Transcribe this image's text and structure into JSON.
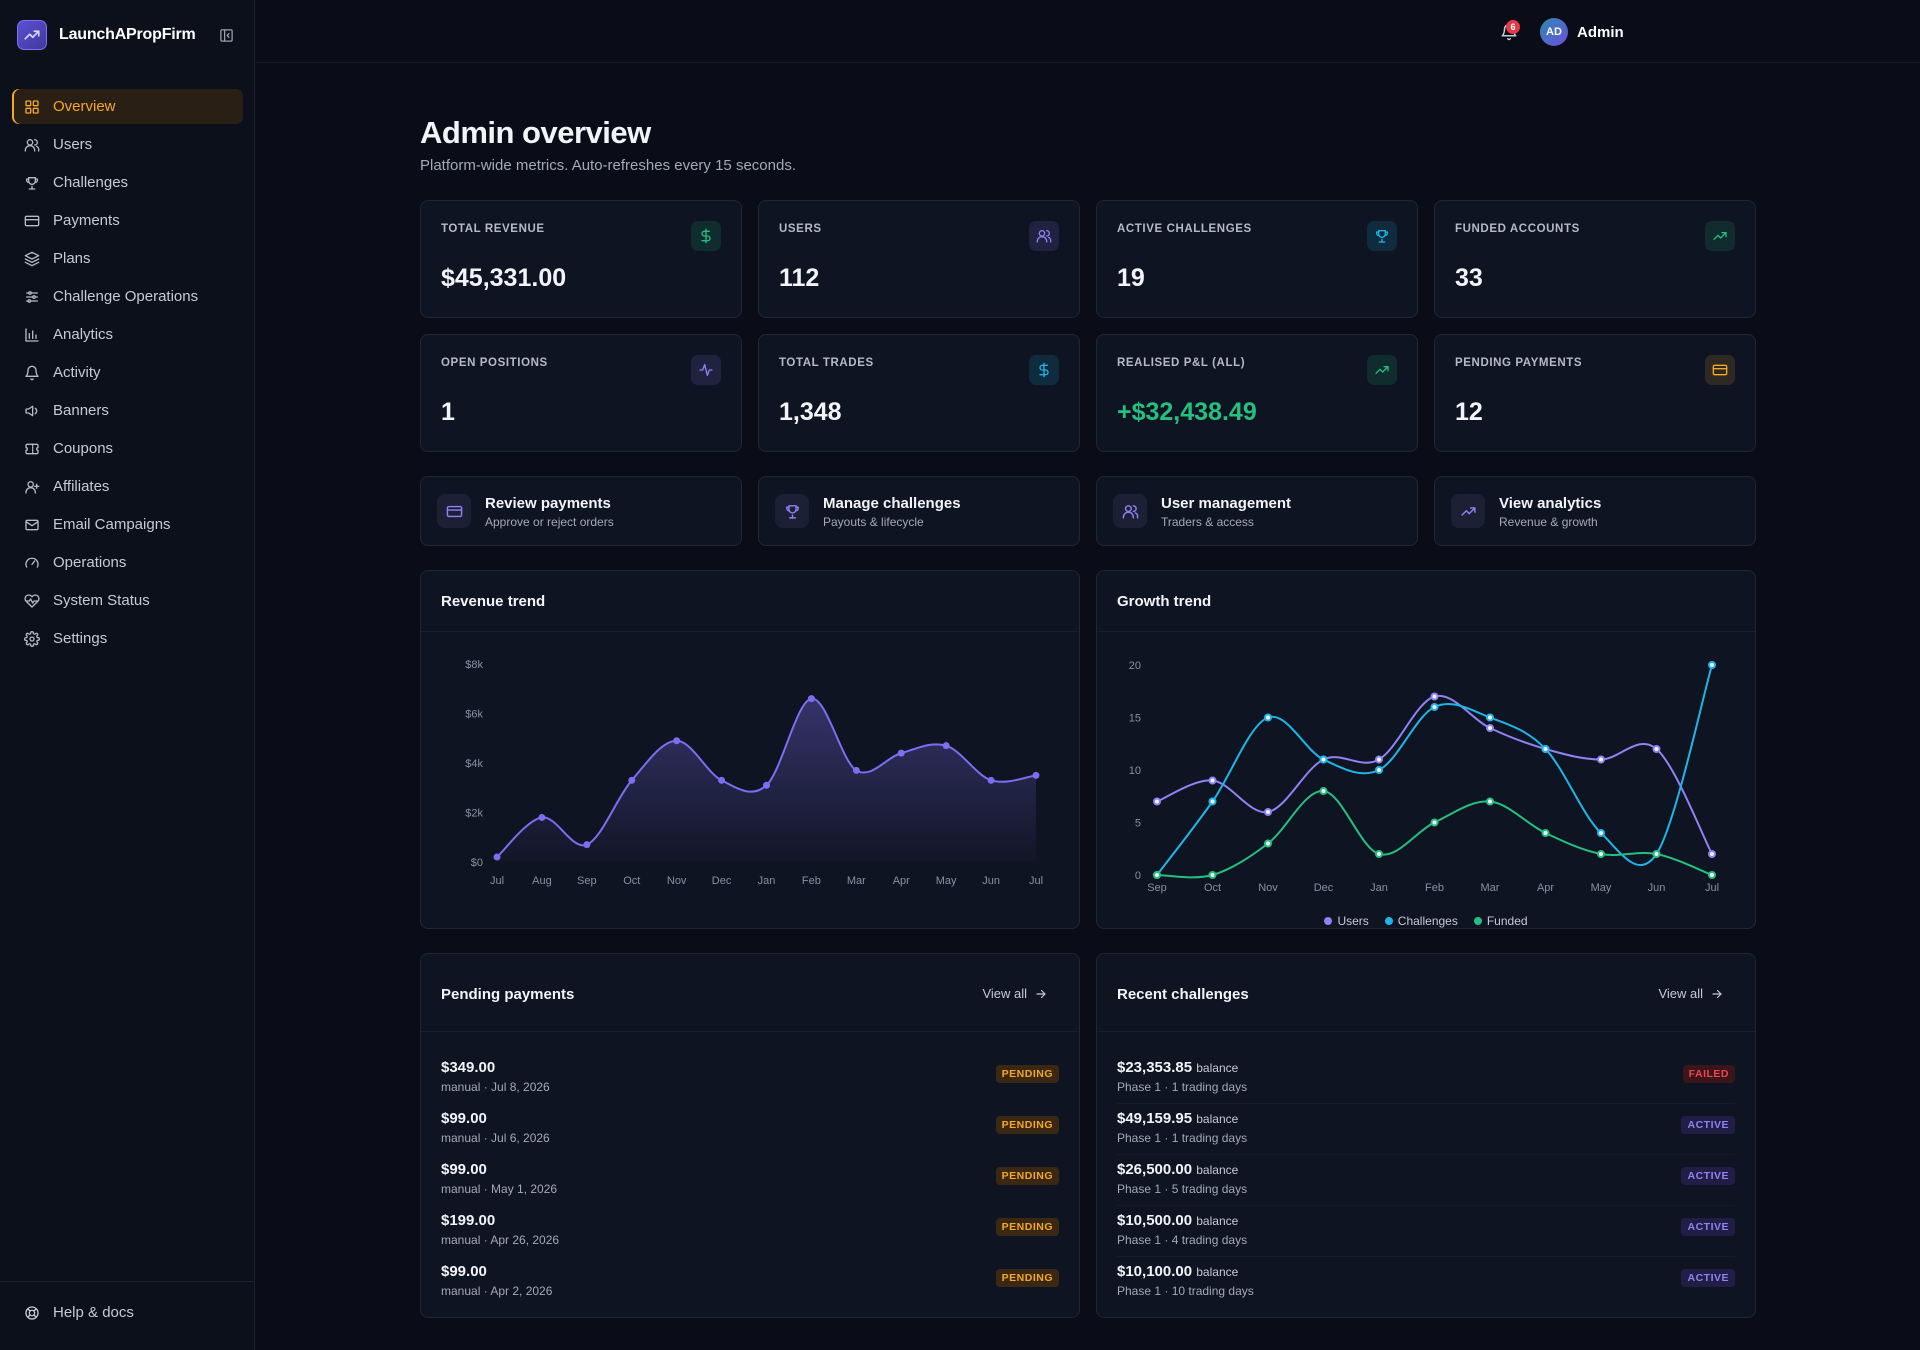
{
  "brand": {
    "name": "LaunchAPropFirm"
  },
  "nav": [
    {
      "label": "Overview",
      "icon": "grid-icon",
      "active": true
    },
    {
      "label": "Users",
      "icon": "users-icon"
    },
    {
      "label": "Challenges",
      "icon": "trophy-icon"
    },
    {
      "label": "Payments",
      "icon": "credit-card-icon"
    },
    {
      "label": "Plans",
      "icon": "layers-icon"
    },
    {
      "label": "Challenge Operations",
      "icon": "sliders-icon"
    },
    {
      "label": "Analytics",
      "icon": "bar-chart-icon"
    },
    {
      "label": "Activity",
      "icon": "bell-icon"
    },
    {
      "label": "Banners",
      "icon": "megaphone-icon"
    },
    {
      "label": "Coupons",
      "icon": "ticket-icon"
    },
    {
      "label": "Affiliates",
      "icon": "user-plus-icon"
    },
    {
      "label": "Email Campaigns",
      "icon": "mail-icon"
    },
    {
      "label": "Operations",
      "icon": "gauge-icon"
    },
    {
      "label": "System Status",
      "icon": "heart-pulse-icon"
    },
    {
      "label": "Settings",
      "icon": "gear-icon"
    }
  ],
  "footer": {
    "help_label": "Help & docs"
  },
  "topbar": {
    "notification_count": "6",
    "user_initials": "AD",
    "user_name": "Admin"
  },
  "header": {
    "title": "Admin overview",
    "subtitle": "Platform-wide metrics. Auto-refreshes every 15 seconds."
  },
  "stats": [
    {
      "label": "TOTAL REVENUE",
      "value": "$45,331.00",
      "icon": "dollar-icon",
      "color": "#25c07f"
    },
    {
      "label": "USERS",
      "value": "112",
      "icon": "users-icon",
      "color": "#8f82f5"
    },
    {
      "label": "ACTIVE CHALLENGES",
      "value": "19",
      "icon": "trophy-icon",
      "color": "#1fb5e8"
    },
    {
      "label": "FUNDED ACCOUNTS",
      "value": "33",
      "icon": "trending-up-icon",
      "color": "#25c07f"
    },
    {
      "label": "OPEN POSITIONS",
      "value": "1",
      "icon": "activity-icon",
      "color": "#8f82f5"
    },
    {
      "label": "TOTAL TRADES",
      "value": "1,348",
      "icon": "dollar-icon",
      "color": "#1fb5e8"
    },
    {
      "label": "REALISED P&L (ALL)",
      "value": "+$32,438.49",
      "icon": "trending-up-icon",
      "color": "#25c07f"
    },
    {
      "label": "PENDING PAYMENTS",
      "value": "12",
      "icon": "credit-card-icon",
      "color": "#f4a825"
    }
  ],
  "actions": [
    {
      "title": "Review payments",
      "subtitle": "Approve or reject orders",
      "icon": "credit-card-icon"
    },
    {
      "title": "Manage challenges",
      "subtitle": "Payouts & lifecycle",
      "icon": "trophy-icon"
    },
    {
      "title": "User management",
      "subtitle": "Traders & access",
      "icon": "users-icon"
    },
    {
      "title": "View analytics",
      "subtitle": "Revenue & growth",
      "icon": "trending-up-icon"
    }
  ],
  "revenue_panel": {
    "title": "Revenue trend"
  },
  "growth_panel": {
    "title": "Growth trend"
  },
  "chart_data": [
    {
      "type": "area",
      "title": "Revenue trend",
      "categories": [
        "Jul",
        "Aug",
        "Sep",
        "Oct",
        "Nov",
        "Dec",
        "Jan",
        "Feb",
        "Mar",
        "Apr",
        "May",
        "Jun",
        "Jul"
      ],
      "series": [
        {
          "values": [
            200,
            1800,
            700,
            3300,
            4900,
            3300,
            3100,
            6600,
            3700,
            4400,
            4700,
            3300,
            3500
          ]
        }
      ],
      "ylim": [
        0,
        8000
      ],
      "yticks": [
        "$0",
        "$2k",
        "$4k",
        "$6k",
        "$8k"
      ],
      "color": "#7b6ef0",
      "grid": false
    },
    {
      "type": "line",
      "title": "Growth trend",
      "categories": [
        "Sep",
        "Oct",
        "Nov",
        "Dec",
        "Jan",
        "Feb",
        "Mar",
        "Apr",
        "May",
        "Jun",
        "Jul"
      ],
      "series": [
        {
          "name": "Users",
          "color": "#8f82f5",
          "values": [
            7,
            9,
            6,
            11,
            11,
            17,
            14,
            12,
            11,
            12,
            2
          ]
        },
        {
          "name": "Challenges",
          "color": "#1fb5e8",
          "values": [
            0,
            7,
            15,
            11,
            10,
            16,
            15,
            12,
            4,
            2,
            20
          ]
        },
        {
          "name": "Funded",
          "color": "#25c07f",
          "values": [
            0,
            0,
            3,
            8,
            2,
            5,
            7,
            4,
            2,
            2,
            0
          ]
        }
      ],
      "ylim": [
        0,
        20
      ],
      "yticks": [
        "0",
        "5",
        "10",
        "15",
        "20"
      ],
      "legend": "bottom",
      "grid": false
    }
  ],
  "pending_payments": {
    "title": "Pending payments",
    "view_all": "View all",
    "rows": [
      {
        "amount": "$349.00",
        "meta": "manual · Jul 8, 2026",
        "status": "PENDING"
      },
      {
        "amount": "$99.00",
        "meta": "manual · Jul 6, 2026",
        "status": "PENDING"
      },
      {
        "amount": "$99.00",
        "meta": "manual · May 1, 2026",
        "status": "PENDING"
      },
      {
        "amount": "$199.00",
        "meta": "manual · Apr 26, 2026",
        "status": "PENDING"
      },
      {
        "amount": "$99.00",
        "meta": "manual · Apr 2, 2026",
        "status": "PENDING"
      }
    ]
  },
  "recent_challenges": {
    "title": "Recent challenges",
    "view_all": "View all",
    "balance_word": "balance",
    "rows": [
      {
        "amount": "$23,353.85",
        "meta": "Phase 1 · 1 trading days",
        "status": "FAILED"
      },
      {
        "amount": "$49,159.95",
        "meta": "Phase 1 · 1 trading days",
        "status": "ACTIVE"
      },
      {
        "amount": "$26,500.00",
        "meta": "Phase 1 · 5 trading days",
        "status": "ACTIVE"
      },
      {
        "amount": "$10,500.00",
        "meta": "Phase 1 · 4 trading days",
        "status": "ACTIVE"
      },
      {
        "amount": "$10,100.00",
        "meta": "Phase 1 · 10 trading days",
        "status": "ACTIVE"
      }
    ]
  }
}
